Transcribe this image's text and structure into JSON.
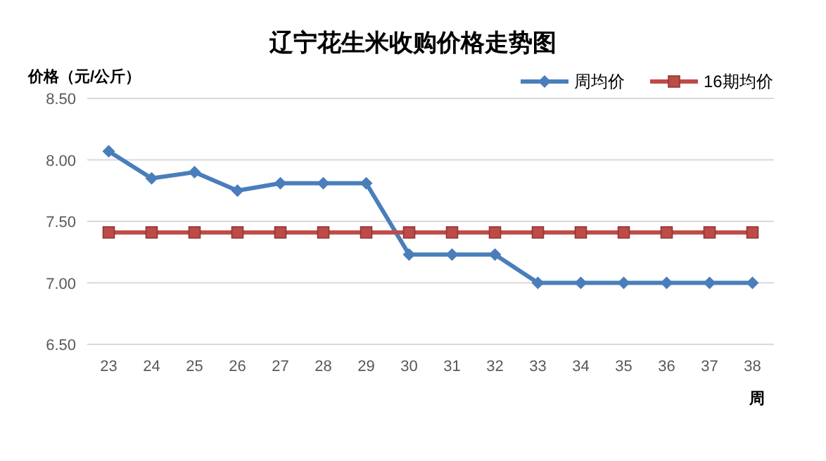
{
  "chart_data": {
    "type": "line",
    "title": "辽宁花生米收购价格走势图",
    "ylabel": "价格（元/公斤）",
    "xlabel": "周",
    "categories": [
      "23",
      "24",
      "25",
      "26",
      "27",
      "28",
      "29",
      "30",
      "31",
      "32",
      "33",
      "34",
      "35",
      "36",
      "37",
      "38"
    ],
    "series": [
      {
        "name": "周均价",
        "color": "#4a7ebb",
        "marker": "diamond",
        "values": [
          8.07,
          7.85,
          7.9,
          7.75,
          7.81,
          7.81,
          7.81,
          7.23,
          7.23,
          7.23,
          7.0,
          7.0,
          7.0,
          7.0,
          7.0,
          7.0
        ]
      },
      {
        "name": "16期均价",
        "color": "#be4b48",
        "marker": "square",
        "values": [
          7.41,
          7.41,
          7.41,
          7.41,
          7.41,
          7.41,
          7.41,
          7.41,
          7.41,
          7.41,
          7.41,
          7.41,
          7.41,
          7.41,
          7.41,
          7.41
        ]
      }
    ],
    "ylim": [
      6.5,
      8.5
    ],
    "yticks": [
      {
        "value": 6.5,
        "label": "6.50"
      },
      {
        "value": 7.0,
        "label": "7.00"
      },
      {
        "value": 7.5,
        "label": "7.50"
      },
      {
        "value": 8.0,
        "label": "8.00"
      },
      {
        "value": 8.5,
        "label": "8.50"
      }
    ],
    "grid": "y",
    "legend": "top right",
    "line_style": "solid"
  }
}
